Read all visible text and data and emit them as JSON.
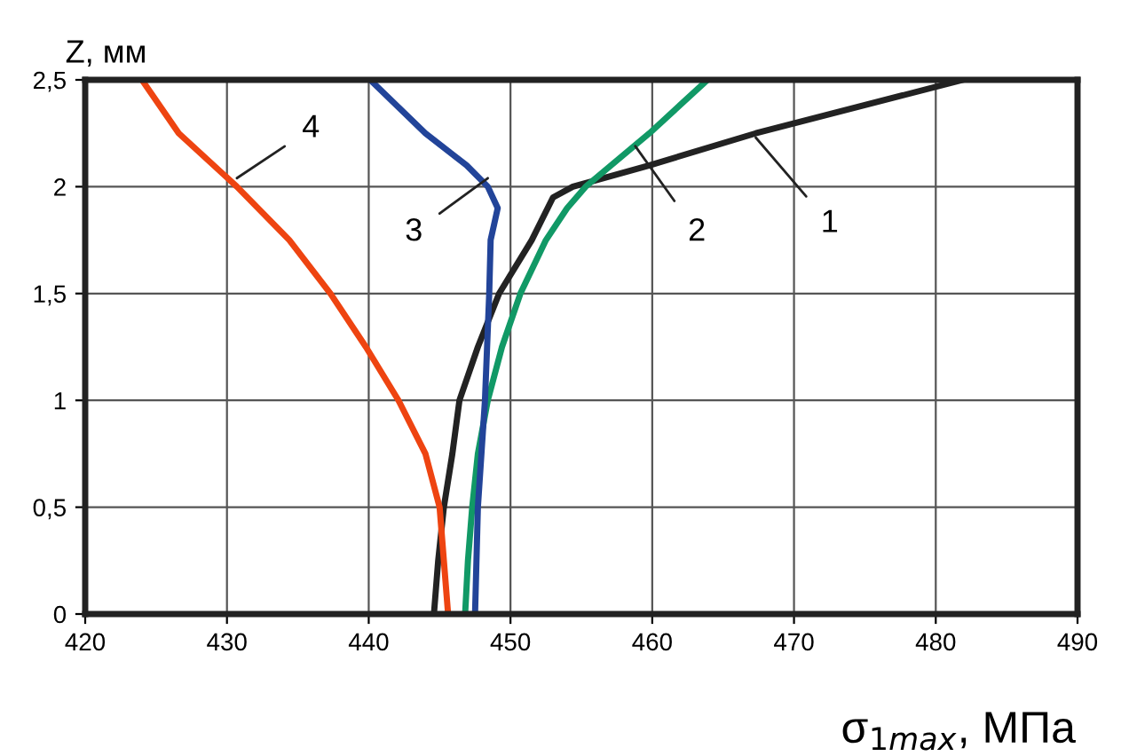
{
  "chart_data": {
    "type": "line",
    "xlabel": "σ$_{1max}$, МПа",
    "ylabel": "Z, мм",
    "xlim": [
      420,
      490
    ],
    "xticks": [
      420,
      430,
      440,
      450,
      460,
      470,
      480,
      490
    ],
    "ylim": [
      0,
      2.5
    ],
    "yticks": [
      0,
      {
        "value": 0.5,
        "label": "0,5"
      },
      1,
      {
        "value": 1.5,
        "label": "1,5"
      },
      2,
      {
        "value": 2.5,
        "label": "2,5"
      }
    ],
    "grid": true,
    "legend": false,
    "marker": "none",
    "line_style": "solid",
    "series": [
      {
        "color": "#222222",
        "x": [
          444.6,
          444.9,
          445.3,
          445.9,
          446.4,
          447.7,
          449.2,
          451.5,
          453.0,
          454.4,
          459.8,
          467.3,
          481.9
        ],
        "values": [
          0,
          0.25,
          0.5,
          0.75,
          1,
          1.25,
          1.5,
          1.75,
          1.95,
          2,
          2.1,
          2.25,
          2.5
        ]
      },
      {
        "color": "#119966",
        "x": [
          446.8,
          447.0,
          447.3,
          447.7,
          448.4,
          449.4,
          450.7,
          452.5,
          454.0,
          455.3,
          459.8,
          463.9
        ],
        "values": [
          0,
          0.25,
          0.5,
          0.75,
          1,
          1.25,
          1.5,
          1.75,
          1.9,
          2,
          2.25,
          2.5
        ]
      },
      {
        "color": "#224499",
        "x": [
          447.5,
          447.7,
          448.2,
          448.5,
          448.6,
          449.1,
          448.4,
          446.9,
          444.0,
          440.1
        ],
        "values": [
          0,
          0.5,
          1,
          1.5,
          1.75,
          1.9,
          2,
          2.1,
          2.25,
          2.5
        ]
      },
      {
        "color": "#ee4411",
        "x": [
          445.6,
          445.0,
          444.0,
          442.1,
          439.8,
          437.3,
          434.4,
          430.7,
          426.6,
          424.0
        ],
        "values": [
          0,
          0.5,
          0.75,
          1,
          1.25,
          1.5,
          1.75,
          2,
          2.25,
          2.5
        ]
      }
    ],
    "annotations": [
      {
        "text": "1",
        "x": 467.3,
        "y": 2.23
      },
      {
        "text": "2",
        "x": 458.8,
        "y": 2.19
      },
      {
        "text": "3",
        "x": 448.4,
        "y": 2.04
      },
      {
        "text": "4",
        "x": 430.7,
        "y": 2.04
      }
    ]
  }
}
